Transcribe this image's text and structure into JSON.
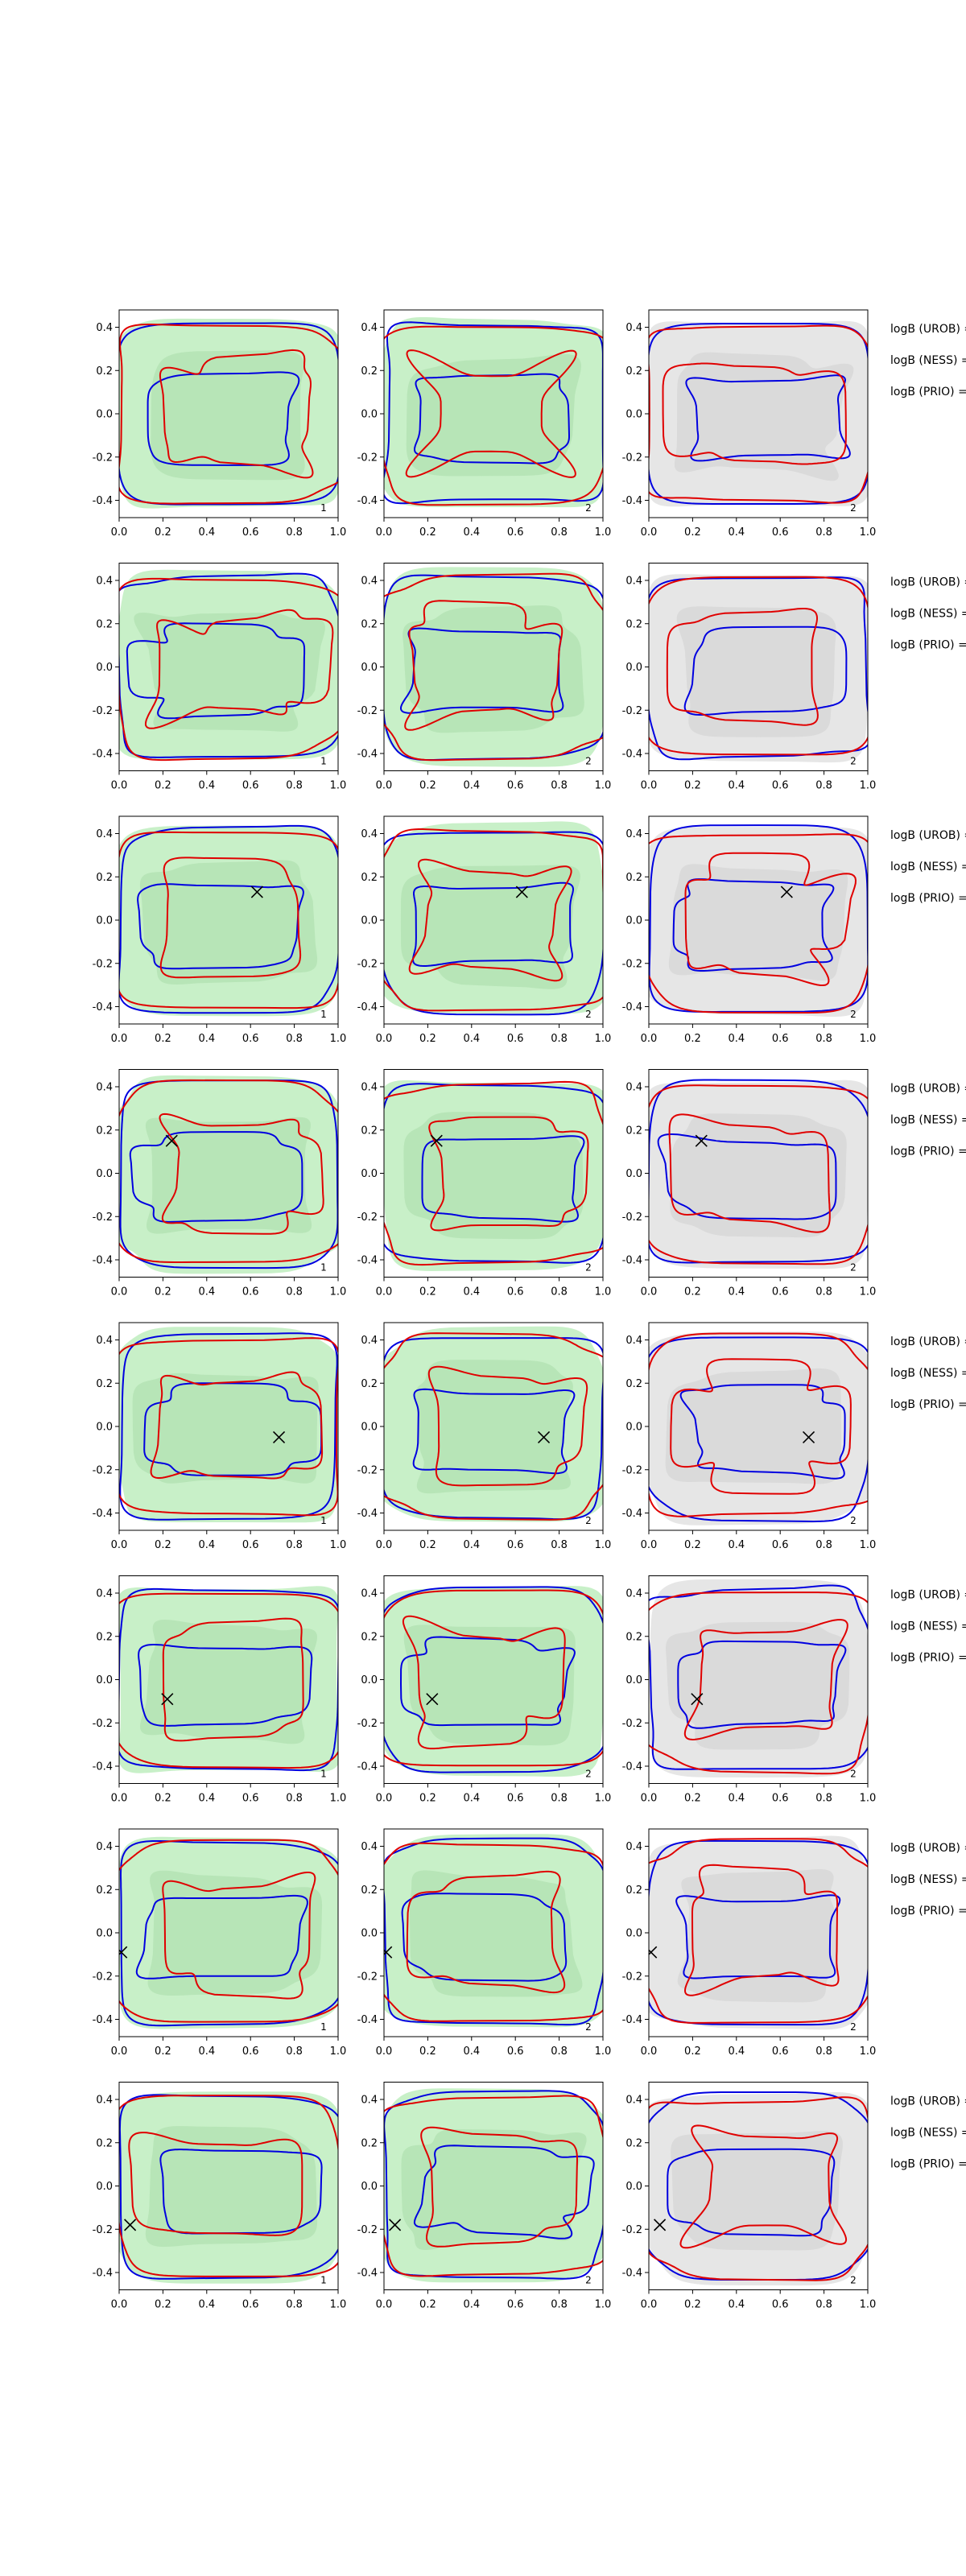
{
  "colors": {
    "background": "#ffffff",
    "green_fill": "#c8f0c8",
    "green_fill_dark": "#a9dca9",
    "gray_fill": "#e6e6e6",
    "gray_fill_dark": "#cfcfcf",
    "contour_red": "#e00000",
    "contour_blue": "#0000e0",
    "axes": "#000000"
  },
  "chart_data": {
    "type": "contour_grid",
    "rows": 8,
    "columns": 3,
    "xlim": [
      0.0,
      1.0
    ],
    "ylim": [
      -0.48,
      0.48
    ],
    "xticks": [
      "0.0",
      "0.2",
      "0.4",
      "0.6",
      "0.8",
      "1.0"
    ],
    "yticks": [
      "0.4",
      "0.2",
      "0.0",
      "-0.2",
      "-0.4"
    ],
    "panel_fill": [
      "green",
      "green",
      "gray"
    ],
    "panel_index_labels": [
      "1",
      "2",
      "2"
    ],
    "row_annotations": [
      [
        "logB (UROB) =",
        "logB (NESS) =",
        "logB (PRIO) ="
      ],
      [
        "logB (UROB) =",
        "logB (NESS) =",
        "logB (PRIO) ="
      ],
      [
        "logB (UROB) =",
        "logB (NESS) =",
        "logB (PRIO) ="
      ],
      [
        "logB (UROB) =",
        "logB (NESS) =",
        "logB (PRIO) ="
      ],
      [
        "logB (UROB) =",
        "logB (NESS) =",
        "logB (PRIO) ="
      ],
      [
        "logB (UROB) =",
        "logB (NESS) =",
        "logB (PRIO) ="
      ],
      [
        "logB (UROB) =",
        "logB (NESS) =",
        "logB (PRIO) ="
      ],
      [
        "logB (UROB) =",
        "logB (NESS) =",
        "logB (PRIO) ="
      ]
    ],
    "markers": [
      null,
      null,
      {
        "x": 0.63,
        "y": 0.13
      },
      {
        "x": 0.24,
        "y": 0.15
      },
      {
        "x": 0.73,
        "y": -0.05
      },
      {
        "x": 0.22,
        "y": -0.09
      },
      {
        "x": 0.01,
        "y": -0.09
      },
      {
        "x": 0.05,
        "y": -0.18
      }
    ]
  }
}
